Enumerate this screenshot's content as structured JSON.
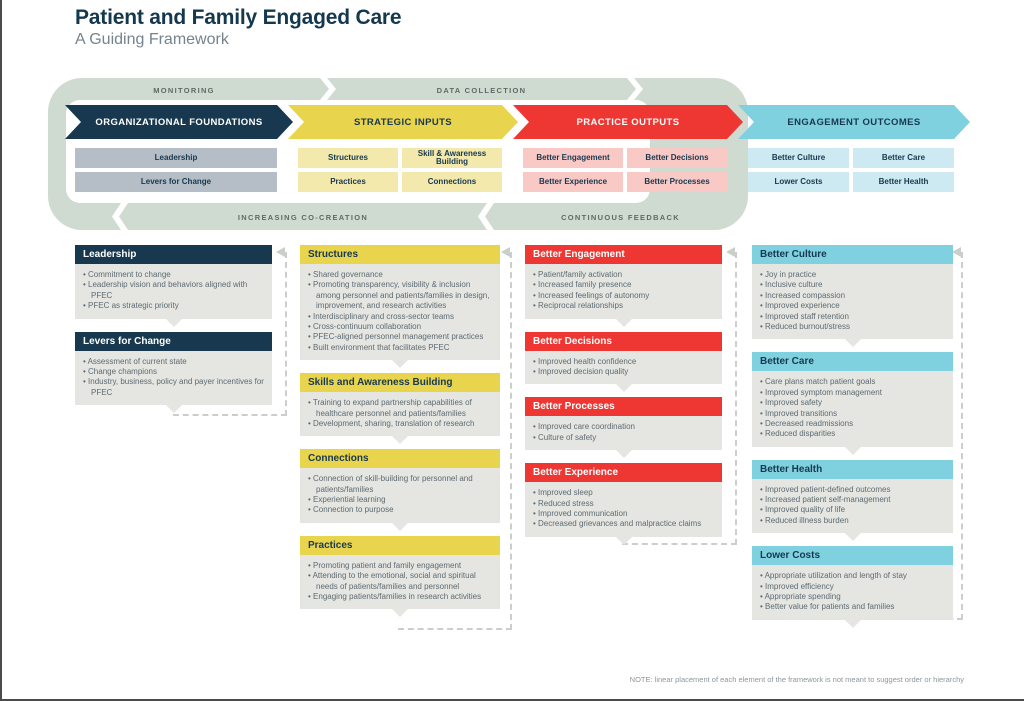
{
  "page": {
    "title": "Patient and Family Engaged Care",
    "subtitle": "A Guiding Framework",
    "note": "NOTE: linear placement of each element of the framework is not meant to suggest order or hierarchy"
  },
  "colors": {
    "navy": "#17384e",
    "yellow": "#e9d44d",
    "red": "#ee3632",
    "cyan": "#7fd1e0",
    "sage_band": "#cfdbd1",
    "gray_subbox": "#b5bec6",
    "light_yellow_subbox": "#f3e9ac",
    "pink_subbox": "#f9c9c6",
    "light_cyan_subbox": "#cdeaf2",
    "body_gray": "#e5e6e1"
  },
  "band": {
    "top_labels": [
      "MONITORING",
      "DATA COLLECTION"
    ],
    "bottom_labels": [
      "INCREASING CO-CREATION",
      "CONTINUOUS FEEDBACK"
    ],
    "segments": [
      {
        "label": "ORGANIZATIONAL FOUNDATIONS",
        "theme": "navy",
        "boxes": [
          "Leadership",
          "Levers for Change"
        ]
      },
      {
        "label": "STRATEGIC INPUTS",
        "theme": "yellow",
        "boxes": [
          "Structures",
          "Skill & Awareness Building",
          "Practices",
          "Connections"
        ]
      },
      {
        "label": "PRACTICE OUTPUTS",
        "theme": "red",
        "boxes": [
          "Better Engagement",
          "Better Decisions",
          "Better Experience",
          "Better Processes"
        ]
      },
      {
        "label": "ENGAGEMENT OUTCOMES",
        "theme": "cyan",
        "boxes": [
          "Better Culture",
          "Better Care",
          "Lower Costs",
          "Better Health"
        ]
      }
    ]
  },
  "detail_columns": [
    {
      "theme": "navy",
      "boxes": [
        {
          "title": "Leadership",
          "bullets": [
            "Commitment to change",
            "Leadership vision and behaviors aligned with PFEC",
            "PFEC as strategic priority"
          ]
        },
        {
          "title": "Levers for Change",
          "bullets": [
            "Assessment of current state",
            "Change champions",
            "Industry, business, policy and payer incentives for PFEC"
          ]
        }
      ]
    },
    {
      "theme": "yellow",
      "boxes": [
        {
          "title": "Structures",
          "bullets": [
            "Shared governance",
            "Promoting transparency, visibility & inclusion among personnel and patients/families in design, improvement, and research activities",
            "Interdisciplinary and cross-sector teams",
            "Cross-continuum collaboration",
            "PFEC-aligned personnel management practices",
            "Built environment that facilitates PFEC"
          ]
        },
        {
          "title": "Skills and Awareness Building",
          "bullets": [
            "Training to expand partnership capabilities of healthcare personnel and patients/families",
            "Development, sharing, translation of research"
          ]
        },
        {
          "title": "Connections",
          "bullets": [
            "Connection of skill-building for personnel and patients/families",
            "Experiential learning",
            "Connection to purpose"
          ]
        },
        {
          "title": "Practices",
          "bullets": [
            "Promoting patient and family engagement",
            "Attending to the emotional, social and spiritual needs of patients/families and personnel",
            "Engaging patients/families in research activities"
          ]
        }
      ]
    },
    {
      "theme": "red",
      "boxes": [
        {
          "title": "Better Engagement",
          "bullets": [
            "Patient/family activation",
            "Increased family presence",
            "Increased feelings of autonomy",
            "Reciprocal relationships"
          ]
        },
        {
          "title": "Better Decisions",
          "bullets": [
            "Improved health confidence",
            "Improved decision quality"
          ]
        },
        {
          "title": "Better Processes",
          "bullets": [
            "Improved care coordination",
            "Culture of safety"
          ]
        },
        {
          "title": "Better Experience",
          "bullets": [
            "Improved sleep",
            "Reduced stress",
            "Improved communication",
            "Decreased grievances and malpractice claims"
          ]
        }
      ]
    },
    {
      "theme": "cyan",
      "boxes": [
        {
          "title": "Better Culture",
          "bullets": [
            "Joy in practice",
            "Inclusive culture",
            "Increased compassion",
            "Improved experience",
            "Improved staff retention",
            "Reduced burnout/stress"
          ]
        },
        {
          "title": "Better Care",
          "bullets": [
            "Care plans match patient goals",
            "Improved symptom management",
            "Improved safety",
            "Improved transitions",
            "Decreased readmissions",
            "Reduced disparities"
          ]
        },
        {
          "title": "Better Health",
          "bullets": [
            "Improved patient-defined outcomes",
            "Increased patient self-management",
            "Improved quality of life",
            "Reduced illness burden"
          ]
        },
        {
          "title": "Lower Costs",
          "bullets": [
            "Appropriate utilization and length of stay",
            "Improved efficiency",
            "Appropriate spending",
            "Better value for patients and families"
          ]
        }
      ]
    }
  ]
}
